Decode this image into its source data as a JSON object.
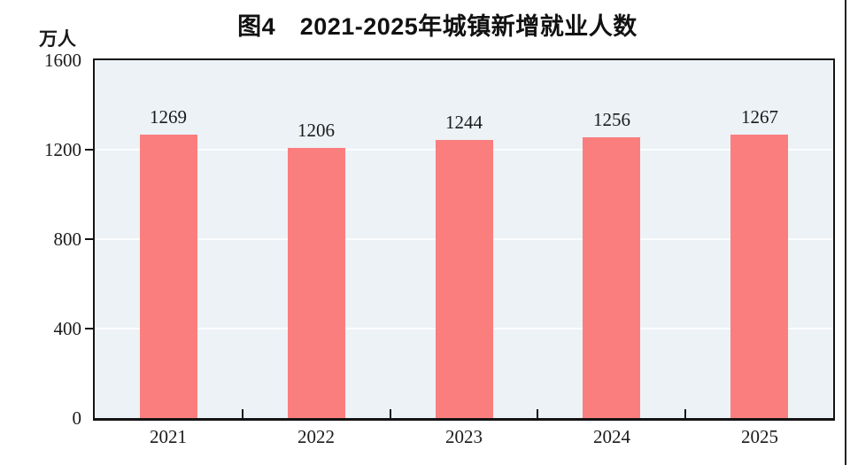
{
  "chart": {
    "title": "图4　2021-2025年城镇新增就业人数",
    "unit_label": "万人"
  },
  "chart_data": {
    "type": "bar",
    "title": "图4　2021-2025年城镇新增就业人数",
    "unit": "万人",
    "categories": [
      "2021",
      "2022",
      "2023",
      "2024",
      "2025"
    ],
    "values": [
      1269,
      1206,
      1244,
      1256,
      1267
    ],
    "xlabel": "",
    "ylabel": "万人",
    "ylim": [
      0,
      1600
    ],
    "yticks": [
      0,
      400,
      800,
      1200,
      1600
    ],
    "grid": true,
    "legend_position": "none",
    "bar_color": "#FB7E7E",
    "plot_background": "#ECF2F6",
    "gridline_color": "#FBFDFE",
    "axis_color": "#141414",
    "text_color": "#1a1a1a"
  }
}
